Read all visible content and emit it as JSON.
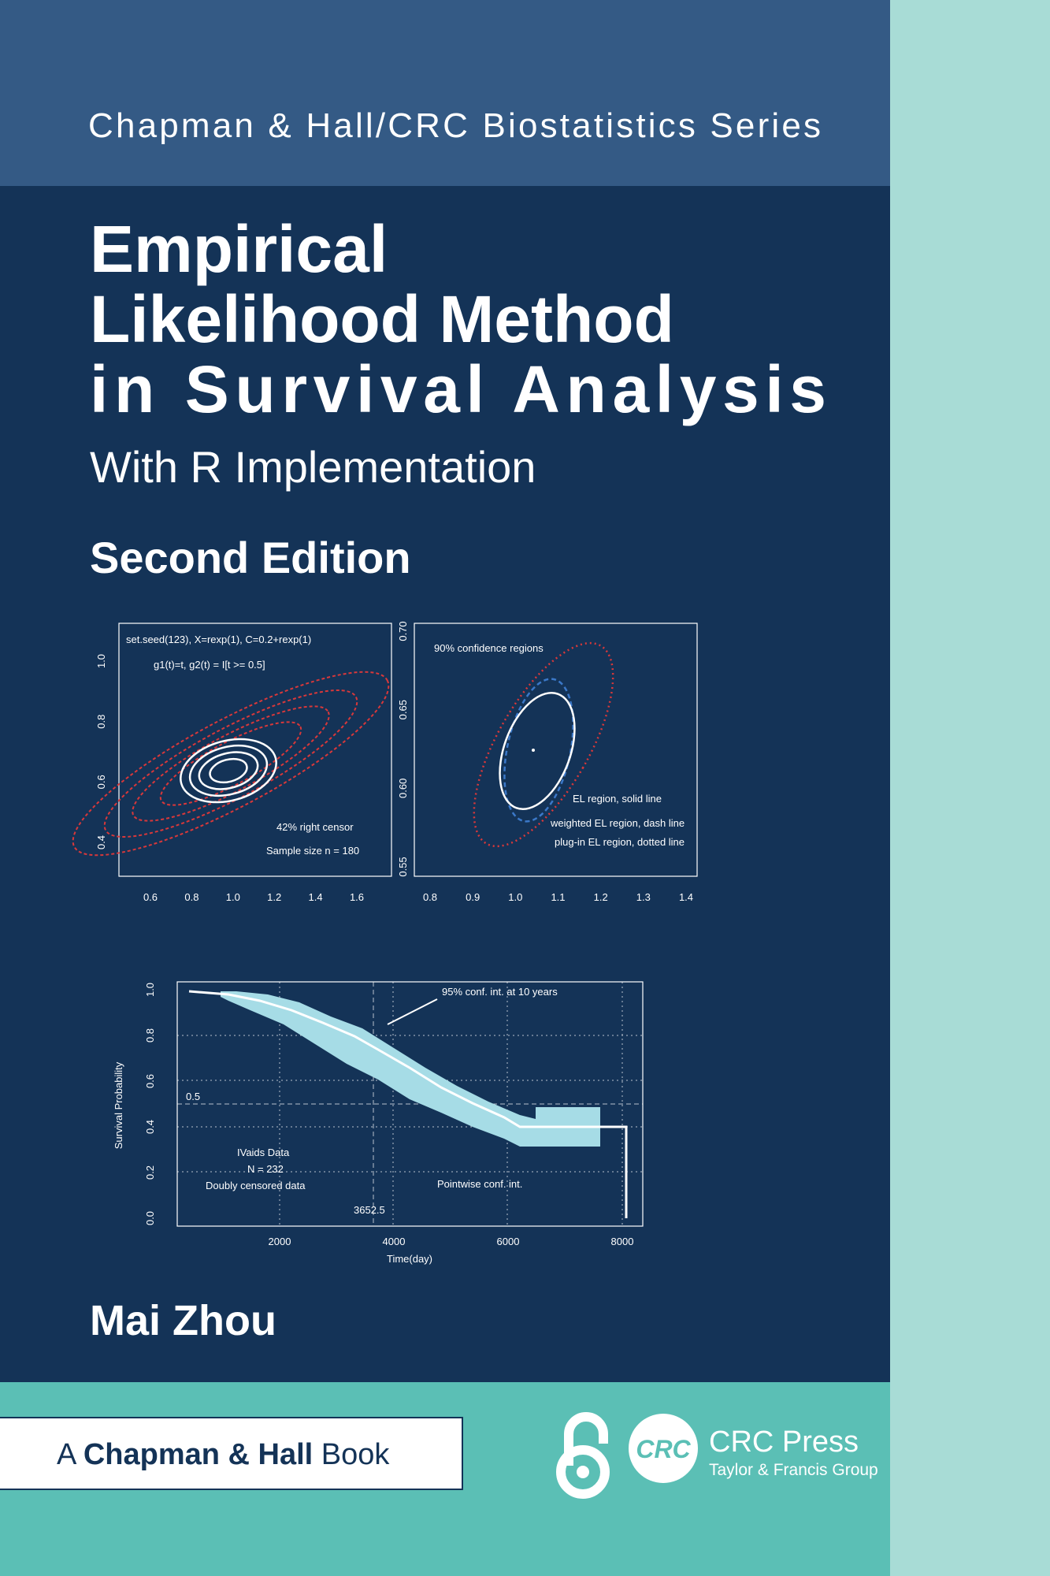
{
  "series": "Chapman & Hall/CRC Biostatistics Series",
  "title": [
    "Empirical",
    "Likelihood Method",
    "in Survival Analysis"
  ],
  "subtitle": "With R Implementation",
  "edition": "Second Edition",
  "figures": [
    {
      "x_ticks": [
        "0.6",
        "0.8",
        "1.0",
        "1.2",
        "1.4",
        "1.6"
      ],
      "y_ticks": [
        "0.4",
        "0.6",
        "0.8",
        "1.0"
      ],
      "annotations": [
        "set.seed(123), X=rexp(1), C=0.2+rexp(1)",
        "g1(t)=t, g2(t) = I[t >= 0.5]",
        "42% right censor",
        "Sample size n = 180"
      ]
    },
    {
      "x_ticks": [
        "0.8",
        "0.9",
        "1.0",
        "1.1",
        "1.2",
        "1.3",
        "1.4"
      ],
      "y_ticks": [
        "0.55",
        "0.60",
        "0.65",
        "0.70"
      ],
      "annotations": [
        "90% confidence regions",
        "EL region, solid line",
        "weighted EL region, dash line",
        "plug-in EL region, dotted line"
      ]
    },
    {
      "x_ticks": [
        "2000",
        "4000",
        "6000",
        "8000"
      ],
      "y_ticks": [
        "0.0",
        "0.2",
        "0.4",
        "0.6",
        "0.8",
        "1.0"
      ],
      "x_label": "Time(day)",
      "y_label": "Survival Probability",
      "annotations": [
        "95% conf. int. at 10 years",
        "0.5",
        "IVaids Data",
        "N = 232",
        "Doubly censored data",
        "3652.5",
        "Pointwise conf. int."
      ]
    }
  ],
  "author": "Mai Zhou",
  "imprint": {
    "prefix": "A",
    "name": "Chapman & Hall",
    "suffix": "Book"
  },
  "publisher": {
    "logo": "CRC",
    "name": "CRC Press",
    "group": "Taylor & Francis Group"
  }
}
